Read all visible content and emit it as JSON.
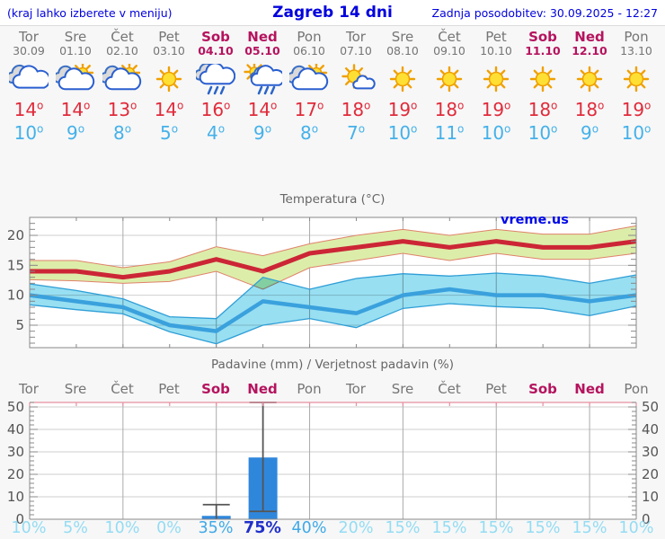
{
  "header": {
    "left_note": "(kraj lahko izberete v meniju)",
    "title": "Zagreb 14 dni",
    "updated": "Zadnja posodobitev: 30.09.2025 - 12:27"
  },
  "watermark": "vreme.us",
  "deg_symbol": "o",
  "colors": {
    "header_blue": "#0202dd",
    "weekday": "#757575",
    "weekend": "#b5135e",
    "tmax_text": "#e02b3b",
    "tmin_text": "#45b1e9",
    "tmax_line": "#cc2636",
    "tmax_band": "#dcedaa",
    "tmax_band_edge": "#e0826a",
    "tmin_line": "#3aa1dd",
    "tmin_band": "#98dff2",
    "tmin_band_edge": "#2f9ed6",
    "bar_fill": "#2f87dc",
    "whisker": "#555555",
    "grid_h": "#cfcfcf",
    "grid_v": "#ababab",
    "axis": "#888888",
    "axis_label": "#555555",
    "precip_top_spine": "#e78fa0",
    "pct_low": "#93dcf3",
    "pct_mid": "#3fa9e8",
    "pct_high": "#2130c9"
  },
  "days": [
    {
      "name": "Tor",
      "date": "30.09",
      "weekend": false,
      "icon": "cloudy",
      "tmax": "14",
      "tmin": "10",
      "pct": "10%",
      "pct_level": "low"
    },
    {
      "name": "Sre",
      "date": "01.10",
      "weekend": false,
      "icon": "sun-cloud",
      "tmax": "14",
      "tmin": "9",
      "pct": "5%",
      "pct_level": "low"
    },
    {
      "name": "Čet",
      "date": "02.10",
      "weekend": false,
      "icon": "sun-cloud",
      "tmax": "13",
      "tmin": "8",
      "pct": "10%",
      "pct_level": "low"
    },
    {
      "name": "Pet",
      "date": "03.10",
      "weekend": false,
      "icon": "sunny",
      "tmax": "14",
      "tmin": "5",
      "pct": "0%",
      "pct_level": "low"
    },
    {
      "name": "Sob",
      "date": "04.10",
      "weekend": true,
      "icon": "rain",
      "tmax": "16",
      "tmin": "4",
      "pct": "35%",
      "pct_level": "mid"
    },
    {
      "name": "Ned",
      "date": "05.10",
      "weekend": true,
      "icon": "sun-rain",
      "tmax": "14",
      "tmin": "9",
      "pct": "75%",
      "pct_level": "high"
    },
    {
      "name": "Pon",
      "date": "06.10",
      "weekend": false,
      "icon": "sun-cloud",
      "tmax": "17",
      "tmin": "8",
      "pct": "40%",
      "pct_level": "mid"
    },
    {
      "name": "Tor",
      "date": "07.10",
      "weekend": false,
      "icon": "mostly-sunny",
      "tmax": "18",
      "tmin": "7",
      "pct": "20%",
      "pct_level": "low"
    },
    {
      "name": "Sre",
      "date": "08.10",
      "weekend": false,
      "icon": "sunny",
      "tmax": "19",
      "tmin": "10",
      "pct": "15%",
      "pct_level": "low"
    },
    {
      "name": "Čet",
      "date": "09.10",
      "weekend": false,
      "icon": "sunny",
      "tmax": "18",
      "tmin": "11",
      "pct": "15%",
      "pct_level": "low"
    },
    {
      "name": "Pet",
      "date": "10.10",
      "weekend": false,
      "icon": "sunny",
      "tmax": "19",
      "tmin": "10",
      "pct": "15%",
      "pct_level": "low"
    },
    {
      "name": "Sob",
      "date": "11.10",
      "weekend": true,
      "icon": "sunny",
      "tmax": "18",
      "tmin": "10",
      "pct": "15%",
      "pct_level": "low"
    },
    {
      "name": "Ned",
      "date": "12.10",
      "weekend": true,
      "icon": "sunny",
      "tmax": "18",
      "tmin": "9",
      "pct": "15%",
      "pct_level": "low"
    },
    {
      "name": "Pon",
      "date": "13.10",
      "weekend": false,
      "icon": "sunny",
      "tmax": "19",
      "tmin": "10",
      "pct": "10%",
      "pct_level": "low"
    }
  ],
  "chart_data": [
    {
      "type": "line",
      "title": "Temperatura (°C)",
      "x_categories": [
        "Tor 30.09",
        "Sre 01.10",
        "Čet 02.10",
        "Pet 03.10",
        "Sob 04.10",
        "Ned 05.10",
        "Pon 06.10",
        "Tor 07.10",
        "Sre 08.10",
        "Čet 09.10",
        "Pet 10.10",
        "Sob 11.10",
        "Ned 12.10",
        "Pon 13.10"
      ],
      "series": [
        {
          "name": "max temperature",
          "values": [
            14,
            14,
            13,
            14,
            16,
            14,
            17,
            18,
            19,
            18,
            19,
            18,
            18,
            19
          ],
          "band_hi": [
            15.8,
            15.8,
            14.6,
            15.6,
            18.1,
            16.6,
            18.6,
            20,
            21,
            20,
            21,
            20.2,
            20.2,
            21.6
          ],
          "band_lo": [
            12.6,
            12.4,
            12.0,
            12.3,
            14.0,
            11.0,
            14.6,
            15.8,
            17.0,
            15.8,
            17.0,
            16.0,
            16.0,
            17.0
          ]
        },
        {
          "name": "min temperature",
          "values": [
            10,
            9,
            8,
            5,
            4,
            9,
            8,
            7,
            10,
            11,
            10,
            10,
            9,
            10
          ],
          "band_hi": [
            11.9,
            10.8,
            9.4,
            6.4,
            6.1,
            13.0,
            11.0,
            12.8,
            13.6,
            13.2,
            13.7,
            13.2,
            12.0,
            13.4
          ],
          "band_lo": [
            8.4,
            7.6,
            6.9,
            3.9,
            1.9,
            5.0,
            6.1,
            4.6,
            7.8,
            8.6,
            8.1,
            7.8,
            6.6,
            8.2
          ]
        }
      ],
      "ylim": [
        1.25,
        23
      ],
      "yticks": [
        5,
        10,
        15,
        20
      ],
      "grid": "on",
      "legend": "none",
      "annotations": [
        "vreme.us"
      ]
    },
    {
      "type": "bar",
      "title": "Padavine (mm) / Verjetnost padavin (%)",
      "x_categories": [
        "Tor",
        "Sre",
        "Čet",
        "Pet",
        "Sob",
        "Ned",
        "Pon",
        "Tor",
        "Sre",
        "Čet",
        "Pet",
        "Sob",
        "Ned",
        "Pon"
      ],
      "values": [
        0,
        0,
        0,
        0,
        1.5,
        27.5,
        0,
        0,
        0,
        0,
        0,
        0,
        0,
        0
      ],
      "whisker_lo": [
        null,
        null,
        null,
        null,
        0,
        3.5,
        null,
        null,
        null,
        null,
        null,
        null,
        null,
        null
      ],
      "whisker_hi": [
        null,
        null,
        null,
        null,
        6.5,
        52,
        null,
        null,
        null,
        null,
        null,
        null,
        null,
        null
      ],
      "probabilities_pct": [
        10,
        5,
        10,
        0,
        35,
        75,
        40,
        20,
        15,
        15,
        15,
        15,
        15,
        10
      ],
      "ylim": [
        0,
        52
      ],
      "yticks": [
        0,
        10,
        20,
        30,
        40,
        50
      ],
      "grid": "on"
    }
  ]
}
